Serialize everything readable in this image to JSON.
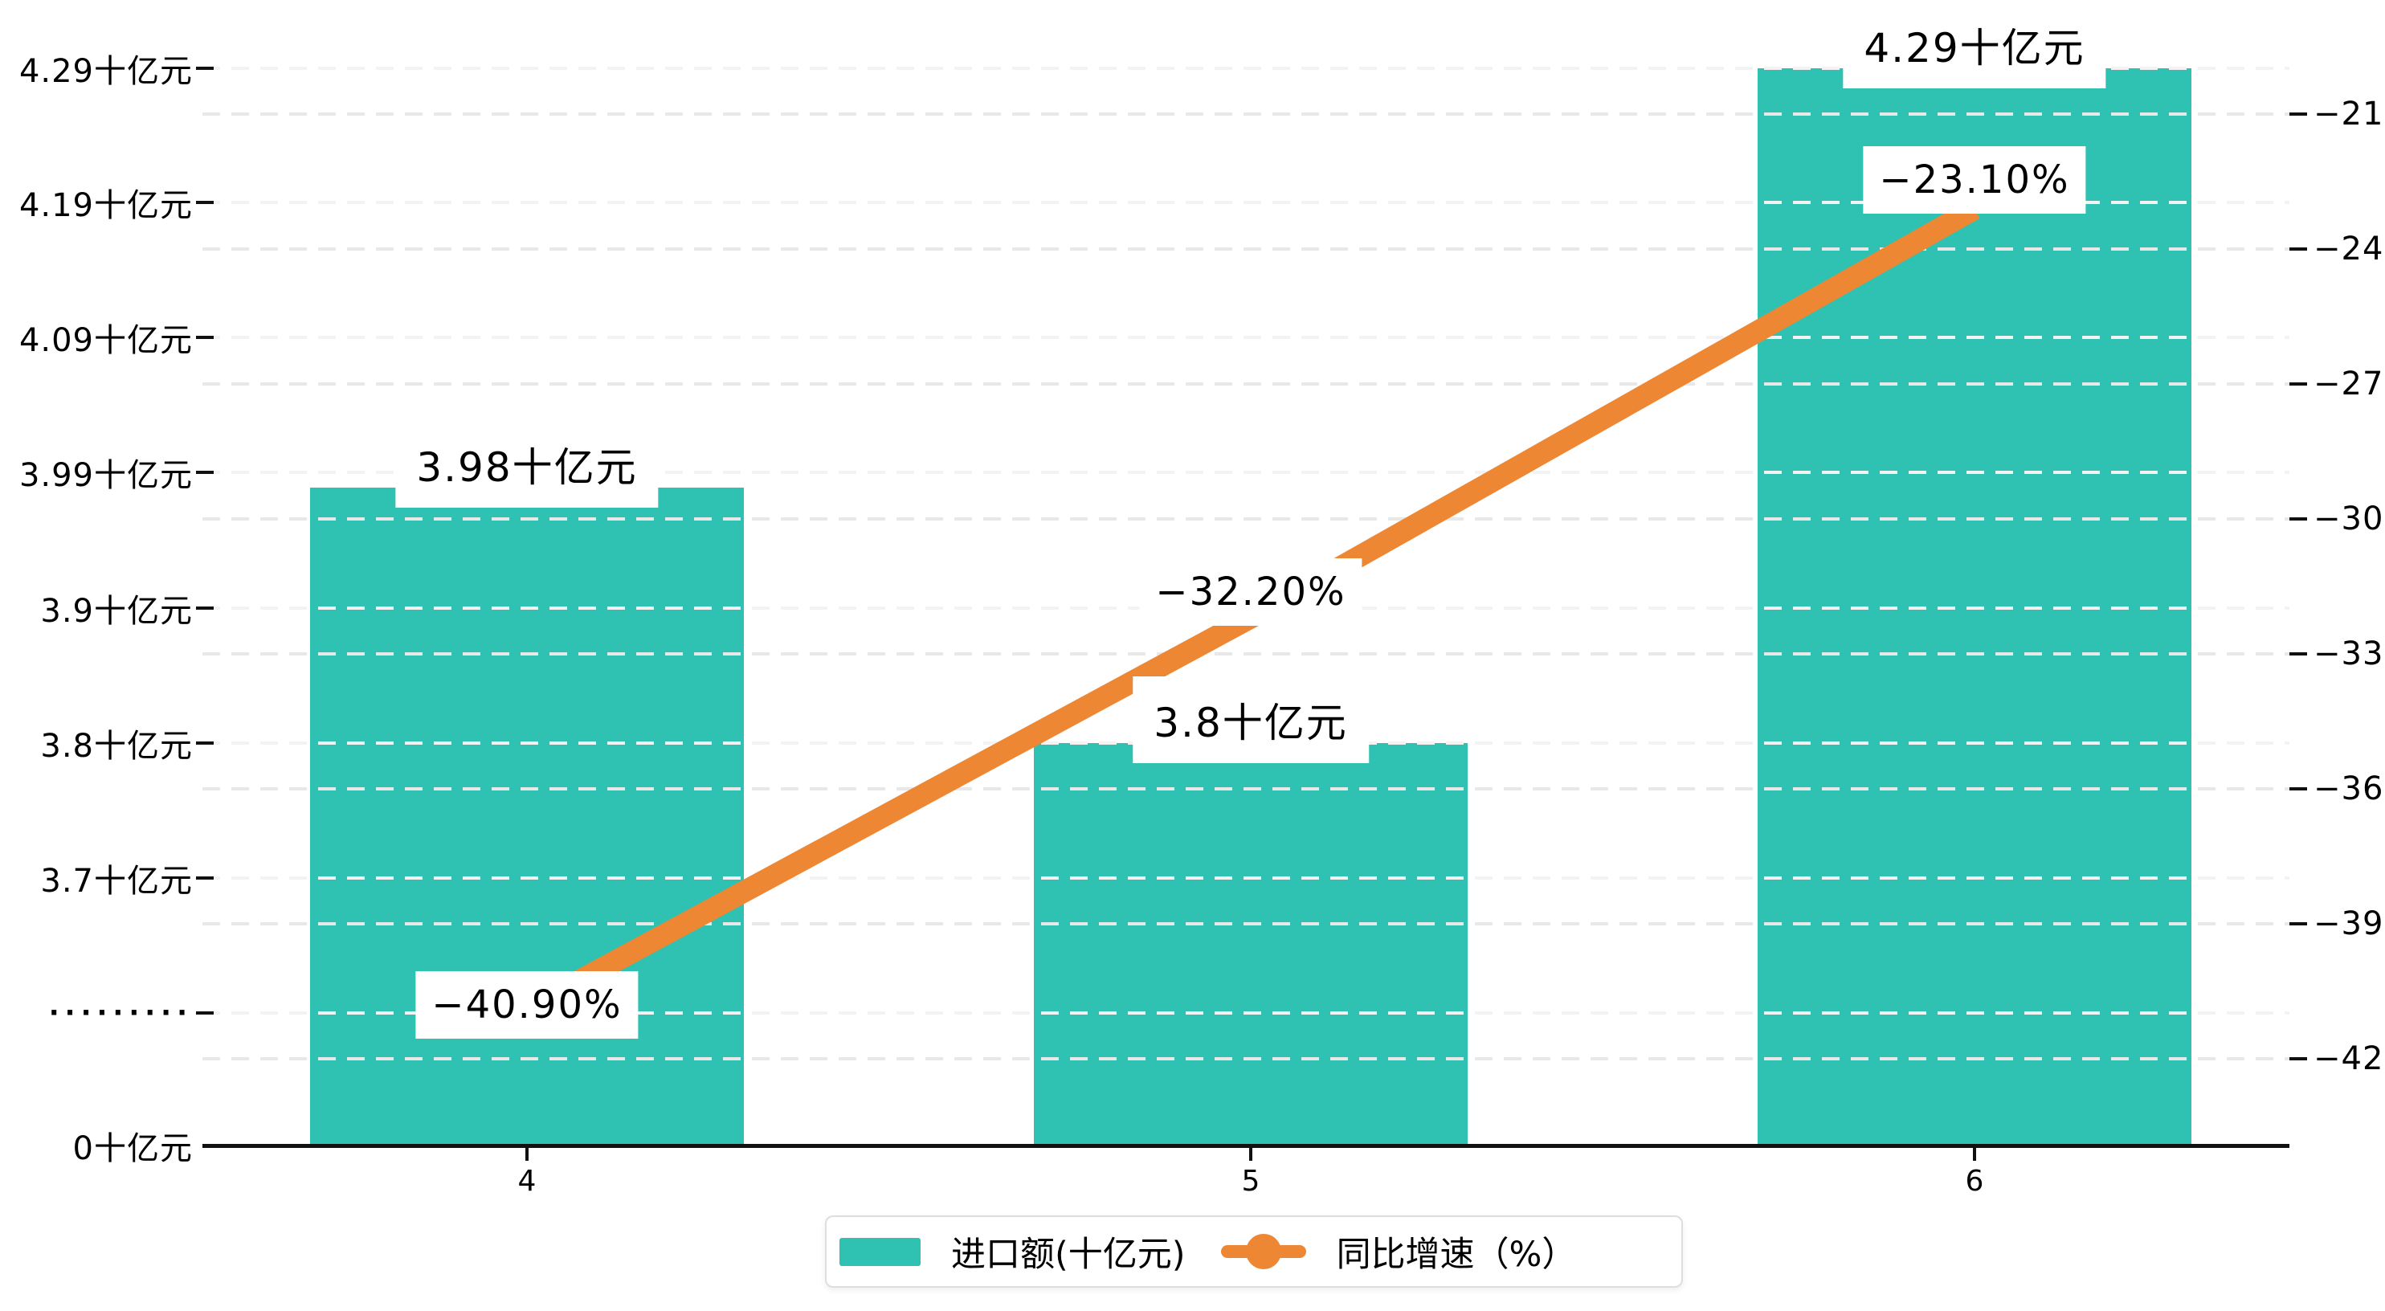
{
  "page": {
    "background": "#FFFFFF"
  },
  "chart_data": {
    "type": "bar",
    "subtype": "bar-line-combo-dual-axis",
    "categories": [
      "4",
      "5",
      "6"
    ],
    "series": [
      {
        "name": "进口额(十亿元)",
        "type": "bar",
        "unit": "十亿元",
        "axis": "left",
        "color": "#2FC1B2",
        "values": [
          3.98,
          3.8,
          4.29
        ],
        "data_labels": [
          "3.98十亿元",
          "3.8十亿元",
          "4.29十亿元"
        ]
      },
      {
        "name": "同比增速（%）",
        "type": "line",
        "unit": "%",
        "axis": "right",
        "color": "#EE8733",
        "values": [
          -40.9,
          -32.2,
          -23.1
        ],
        "data_labels": [
          "−40.90%",
          "−32.20%",
          "−23.10%"
        ]
      }
    ],
    "left_axis": {
      "tick_labels": [
        "4.29十亿元",
        "4.19十亿元",
        "4.09十亿元",
        "3.99十亿元",
        "3.9十亿元",
        "3.8十亿元",
        "3.7十亿元"
      ],
      "tick_values": [
        4.29,
        4.19,
        4.09,
        3.99,
        3.9,
        3.8,
        3.7
      ],
      "break_label": "·········",
      "zero_label": "0十亿元",
      "has_break": true
    },
    "right_axis": {
      "tick_labels": [
        "−21",
        "−24",
        "−27",
        "−30",
        "−33",
        "−36",
        "−39",
        "−42"
      ],
      "tick_values": [
        -21,
        -24,
        -27,
        -30,
        -33,
        -36,
        -39,
        -42
      ]
    },
    "x_axis": {
      "tick_labels": [
        "4",
        "5",
        "6"
      ]
    },
    "grid": {
      "style": "dashed",
      "shown": true
    },
    "legend_position": "bottom"
  },
  "legend": {
    "items": [
      {
        "label": "进口额(十亿元)",
        "marker": "bar-swatch",
        "color": "#2FC1B2"
      },
      {
        "label": "同比增速（%）",
        "marker": "line-dot-swatch",
        "color": "#EE8733"
      }
    ]
  },
  "colors": {
    "bar": "#2FC1B2",
    "line": "#EE8733",
    "axis": "#111111",
    "grid_left": "#F3F3F3",
    "grid_right": "#E8E8E8",
    "label_bg": "#FFFFFF",
    "text": "#000000",
    "legend_border": "#DEDEDE"
  }
}
